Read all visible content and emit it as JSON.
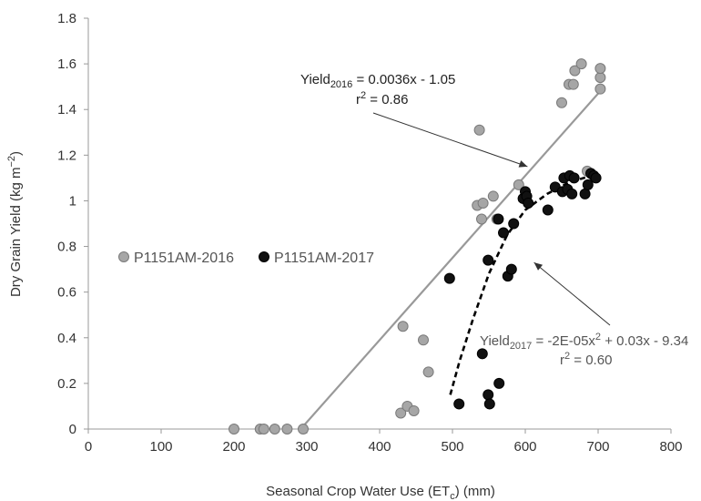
{
  "chart_data": {
    "type": "scatter",
    "xlabel": "Seasonal Crop Water Use (ETc) (mm)",
    "ylabel": "Dry Grain Yield (kg m⁻²)",
    "xlim": [
      0,
      800
    ],
    "ylim": [
      0,
      1.8
    ],
    "x_ticks": [
      "0",
      "100",
      "200",
      "300",
      "400",
      "500",
      "600",
      "700",
      "800"
    ],
    "y_ticks": [
      "0",
      "0.2",
      "0.4",
      "0.6",
      "0.8",
      "1",
      "1.2",
      "1.4",
      "1.6",
      "1.8"
    ],
    "grid": false,
    "legend_position": "middle-left",
    "series": [
      {
        "name": "P1151AM-2016",
        "color": "#a6a6a6",
        "points": [
          [
            200,
            0.0
          ],
          [
            236,
            0.0
          ],
          [
            241,
            0.0
          ],
          [
            256,
            0.0
          ],
          [
            273,
            0.0
          ],
          [
            295,
            0.0
          ],
          [
            429,
            0.07
          ],
          [
            432,
            0.45
          ],
          [
            438,
            0.1
          ],
          [
            447,
            0.08
          ],
          [
            460,
            0.39
          ],
          [
            467,
            0.25
          ],
          [
            534,
            0.98
          ],
          [
            537,
            1.31
          ],
          [
            540,
            0.92
          ],
          [
            542,
            0.99
          ],
          [
            556,
            1.02
          ],
          [
            561,
            0.92
          ],
          [
            591,
            1.07
          ],
          [
            650,
            1.43
          ],
          [
            660,
            1.51
          ],
          [
            666,
            1.51
          ],
          [
            668,
            1.57
          ],
          [
            677,
            1.6
          ],
          [
            685,
            1.13
          ],
          [
            703,
            1.49
          ],
          [
            703,
            1.54
          ],
          [
            703,
            1.58
          ]
        ]
      },
      {
        "name": "P1151AM-2017",
        "color": "#111111",
        "points": [
          [
            496,
            0.66
          ],
          [
            509,
            0.11
          ],
          [
            541,
            0.33
          ],
          [
            549,
            0.74
          ],
          [
            549,
            0.15
          ],
          [
            551,
            0.11
          ],
          [
            563,
            0.92
          ],
          [
            564,
            0.2
          ],
          [
            570,
            0.86
          ],
          [
            576,
            0.67
          ],
          [
            581,
            0.7
          ],
          [
            584,
            0.9
          ],
          [
            597,
            1.01
          ],
          [
            600,
            1.04
          ],
          [
            602,
            1.02
          ],
          [
            604,
            0.99
          ],
          [
            631,
            0.96
          ],
          [
            641,
            1.06
          ],
          [
            651,
            1.04
          ],
          [
            653,
            1.1
          ],
          [
            658,
            1.05
          ],
          [
            661,
            1.11
          ],
          [
            664,
            1.03
          ],
          [
            667,
            1.1
          ],
          [
            682,
            1.03
          ],
          [
            686,
            1.07
          ],
          [
            690,
            1.12
          ],
          [
            694,
            1.11
          ],
          [
            697,
            1.1
          ]
        ]
      }
    ],
    "fits": [
      {
        "series": "P1151AM-2016",
        "style": "solid",
        "color": "#999999",
        "domain": [
          294,
          703
        ],
        "coefficients": {
          "a": 0,
          "b": 0.0036,
          "c": -1.05
        }
      },
      {
        "series": "P1151AM-2017",
        "style": "dashed",
        "color": "#000000",
        "domain": [
          497,
          690
        ],
        "shape_points": [
          [
            497,
            0.15
          ],
          [
            510,
            0.3
          ],
          [
            528,
            0.48
          ],
          [
            550,
            0.68
          ],
          [
            575,
            0.85
          ],
          [
            600,
            0.96
          ],
          [
            630,
            1.03
          ],
          [
            660,
            1.08
          ],
          [
            690,
            1.11
          ]
        ]
      }
    ],
    "annotations": [
      {
        "equation_prefix": "Yield",
        "equation_sub": "2016",
        "equation_suffix": " = 0.0036x - 1.05",
        "r2_prefix": "r",
        "r2_sup": "2",
        "r2_suffix": " = 0.86",
        "color": "#222222",
        "arrow_target": [
          603,
          1.15
        ]
      },
      {
        "equation_prefix": "Yield",
        "equation_sub": "2017",
        "equation_mid": " = -2E-05x",
        "equation_sup": "2",
        "equation_suffix": " + 0.03x - 9.34",
        "r2_prefix": "r",
        "r2_sup": "2",
        "r2_suffix": " = 0.60",
        "color": "#555555",
        "arrow_target": [
          612,
          0.73
        ]
      }
    ]
  }
}
